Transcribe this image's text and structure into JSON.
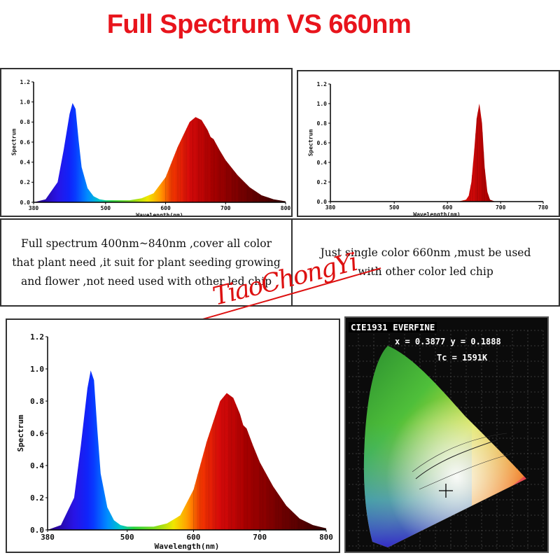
{
  "title": "Full Spectrum VS 660nm",
  "captions": {
    "full": [
      "Full spectrum 400nm~840nm ,cover all color",
      "that plant need ,it suit for plant seeding growing",
      "and flower ,not need used with other led chip"
    ],
    "single": [
      "Just single color 660nm ,must be used",
      "with other color led chip"
    ]
  },
  "watermark": "TiaoChongYi",
  "cie": {
    "header": "CIE1931 EVERFINE",
    "coords": "x = 0.3877 y = 0.1888",
    "tc": "Tc = 1591K"
  },
  "chart_data": [
    {
      "type": "area",
      "title": "",
      "xlabel": "Wavelength(nm)",
      "ylabel": "Spectrum",
      "xlim": [
        380,
        800
      ],
      "ylim": [
        0,
        1.2
      ],
      "x_ticks": [
        "380",
        "500",
        "600",
        "700",
        "800"
      ],
      "y_ticks": [
        "0.0",
        "0.2",
        "0.4",
        "0.6",
        "0.8",
        "1.0",
        "1.2"
      ],
      "x": [
        380,
        400,
        420,
        430,
        440,
        445,
        450,
        455,
        460,
        470,
        480,
        490,
        500,
        520,
        540,
        560,
        580,
        600,
        620,
        640,
        650,
        660,
        670,
        675,
        680,
        690,
        700,
        720,
        740,
        760,
        780,
        800
      ],
      "values": [
        0.0,
        0.03,
        0.2,
        0.52,
        0.88,
        0.99,
        0.93,
        0.62,
        0.35,
        0.14,
        0.06,
        0.03,
        0.02,
        0.02,
        0.02,
        0.04,
        0.09,
        0.25,
        0.55,
        0.8,
        0.85,
        0.82,
        0.72,
        0.65,
        0.63,
        0.52,
        0.42,
        0.27,
        0.15,
        0.07,
        0.03,
        0.01
      ]
    },
    {
      "type": "area",
      "title": "",
      "xlabel": "Wavelength(nm)",
      "ylabel": "Spectrum",
      "xlim": [
        380,
        780
      ],
      "ylim": [
        0,
        1.2
      ],
      "x_ticks": [
        "380",
        "500",
        "600",
        "700",
        "780"
      ],
      "y_ticks": [
        "0.0",
        "0.2",
        "0.4",
        "0.6",
        "0.8",
        "1.0",
        "1.2"
      ],
      "x": [
        380,
        620,
        635,
        640,
        645,
        650,
        655,
        660,
        665,
        670,
        675,
        680,
        690,
        780
      ],
      "values": [
        0.0,
        0.0,
        0.02,
        0.06,
        0.2,
        0.5,
        0.85,
        1.0,
        0.8,
        0.35,
        0.1,
        0.02,
        0.0,
        0.0
      ]
    },
    {
      "type": "area",
      "title": "",
      "xlabel": "Wavelength(nm)",
      "ylabel": "Spectrum",
      "xlim": [
        380,
        800
      ],
      "ylim": [
        0,
        1.2
      ],
      "x_ticks": [
        "380",
        "500",
        "600",
        "700",
        "800"
      ],
      "y_ticks": [
        "0.0",
        "0.2",
        "0.4",
        "0.6",
        "0.8",
        "1.0",
        "1.2"
      ],
      "x": [
        380,
        400,
        420,
        430,
        440,
        445,
        450,
        455,
        460,
        470,
        480,
        490,
        500,
        520,
        540,
        560,
        580,
        600,
        620,
        640,
        650,
        660,
        670,
        675,
        680,
        690,
        700,
        720,
        740,
        760,
        780,
        800
      ],
      "values": [
        0.0,
        0.03,
        0.2,
        0.52,
        0.88,
        0.99,
        0.93,
        0.62,
        0.35,
        0.14,
        0.06,
        0.03,
        0.02,
        0.02,
        0.02,
        0.04,
        0.09,
        0.25,
        0.55,
        0.8,
        0.85,
        0.82,
        0.72,
        0.65,
        0.63,
        0.52,
        0.42,
        0.27,
        0.15,
        0.07,
        0.03,
        0.01
      ]
    }
  ]
}
